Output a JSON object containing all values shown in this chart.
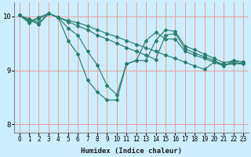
{
  "xlabel": "Humidex (Indice chaleur)",
  "bg_color": "#cceeff",
  "grid_color": "#e8a0a0",
  "line_color": "#2d7d6e",
  "xlim": [
    -0.5,
    23.5
  ],
  "ylim": [
    7.85,
    10.25
  ],
  "yticks": [
    8,
    9,
    10
  ],
  "xticks": [
    0,
    1,
    2,
    3,
    4,
    5,
    6,
    7,
    8,
    9,
    10,
    11,
    12,
    13,
    14,
    15,
    16,
    17,
    18,
    19,
    20,
    21,
    22,
    23
  ],
  "line1_x": [
    0,
    1,
    2,
    3,
    4,
    5,
    6,
    7,
    8,
    9,
    10,
    11,
    12,
    13,
    14,
    15,
    16,
    17,
    18,
    19,
    20,
    21,
    22,
    23
  ],
  "line1_y": [
    10.02,
    9.95,
    9.88,
    10.05,
    9.98,
    9.92,
    9.88,
    9.82,
    9.75,
    9.68,
    9.62,
    9.55,
    9.48,
    9.42,
    9.35,
    9.28,
    9.22,
    9.15,
    9.08,
    9.02,
    9.15,
    9.08,
    9.18,
    9.15
  ],
  "line2_x": [
    0,
    1,
    2,
    3,
    4,
    5,
    6,
    7,
    8,
    9,
    10,
    11,
    12,
    13,
    14,
    15,
    16,
    17,
    18,
    19,
    20,
    21,
    22,
    23
  ],
  "line2_y": [
    10.02,
    9.93,
    9.85,
    10.05,
    9.98,
    9.9,
    9.82,
    9.75,
    9.65,
    9.58,
    9.5,
    9.42,
    9.35,
    9.28,
    9.2,
    9.65,
    9.68,
    9.4,
    9.32,
    9.25,
    9.18,
    9.1,
    9.15,
    9.12
  ],
  "line3_x": [
    0,
    1,
    2,
    3,
    4,
    5,
    6,
    7,
    8,
    9,
    10,
    11,
    12,
    13,
    14,
    15,
    16,
    17,
    18,
    19,
    20,
    21,
    22,
    23
  ],
  "line3_y": [
    10.02,
    9.9,
    9.98,
    10.05,
    9.98,
    9.78,
    9.65,
    9.35,
    9.1,
    8.72,
    8.55,
    9.12,
    9.18,
    9.18,
    9.55,
    9.75,
    9.72,
    9.45,
    9.38,
    9.3,
    9.22,
    9.14,
    9.18,
    9.15
  ],
  "line4_x": [
    0,
    1,
    2,
    3,
    4,
    5,
    6,
    7,
    8,
    9,
    10,
    11,
    12,
    13,
    14,
    15,
    16,
    17,
    18,
    19,
    20,
    21,
    22,
    23
  ],
  "line4_y": [
    10.02,
    9.88,
    9.95,
    10.05,
    9.98,
    9.55,
    9.3,
    8.82,
    8.6,
    8.45,
    8.45,
    9.12,
    9.18,
    9.55,
    9.7,
    9.58,
    9.58,
    9.35,
    9.28,
    9.22,
    9.15,
    9.1,
    9.12,
    9.12
  ]
}
